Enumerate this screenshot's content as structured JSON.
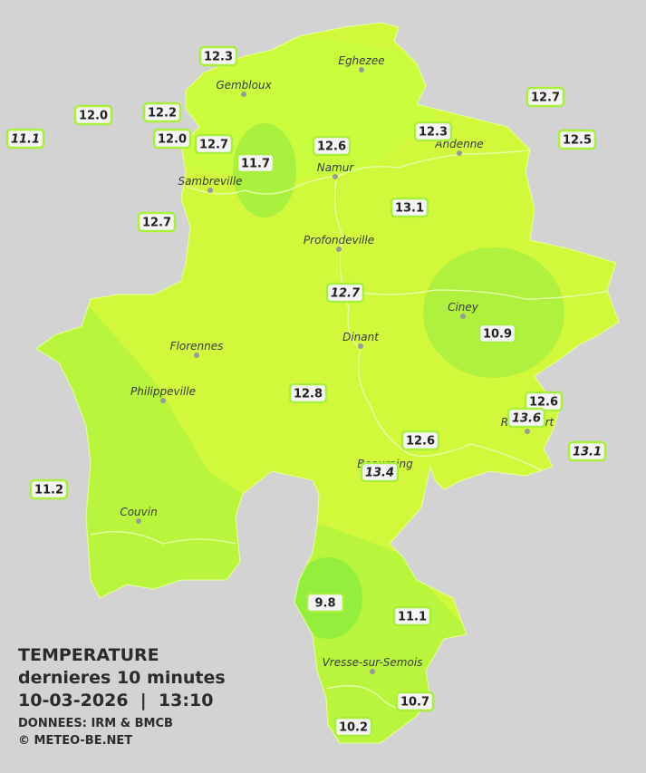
{
  "title": {
    "heading": "TEMPERATURE",
    "subtitle": "dernieres 10 minutes",
    "datetime": "10-03-2026  |  13:10",
    "source": "DONNEES: IRM & BMCB",
    "credit": "© METEO-BE.NET"
  },
  "towns": [
    "Eghezee",
    "Gembloux",
    "Andenne",
    "Namur",
    "Sambreville",
    "Profondeville",
    "Ciney",
    "Dinant",
    "Florennes",
    "Philippeville",
    "Rochefort",
    "Beauraing",
    "Couvin",
    "Vresse-sur-Semois"
  ],
  "stations": [
    "12.3",
    "12.0",
    "12.2",
    "11.1",
    "12.0",
    "12.7",
    "11.7",
    "12.6",
    "12.3",
    "12.7",
    "12.5",
    "12.7",
    "13.1",
    "12.7",
    "10.9",
    "12.8",
    "12.6",
    "13.6",
    "12.6",
    "13.1",
    "13.4",
    "11.2",
    "9.8",
    "11.1",
    "10.7",
    "10.2"
  ]
}
